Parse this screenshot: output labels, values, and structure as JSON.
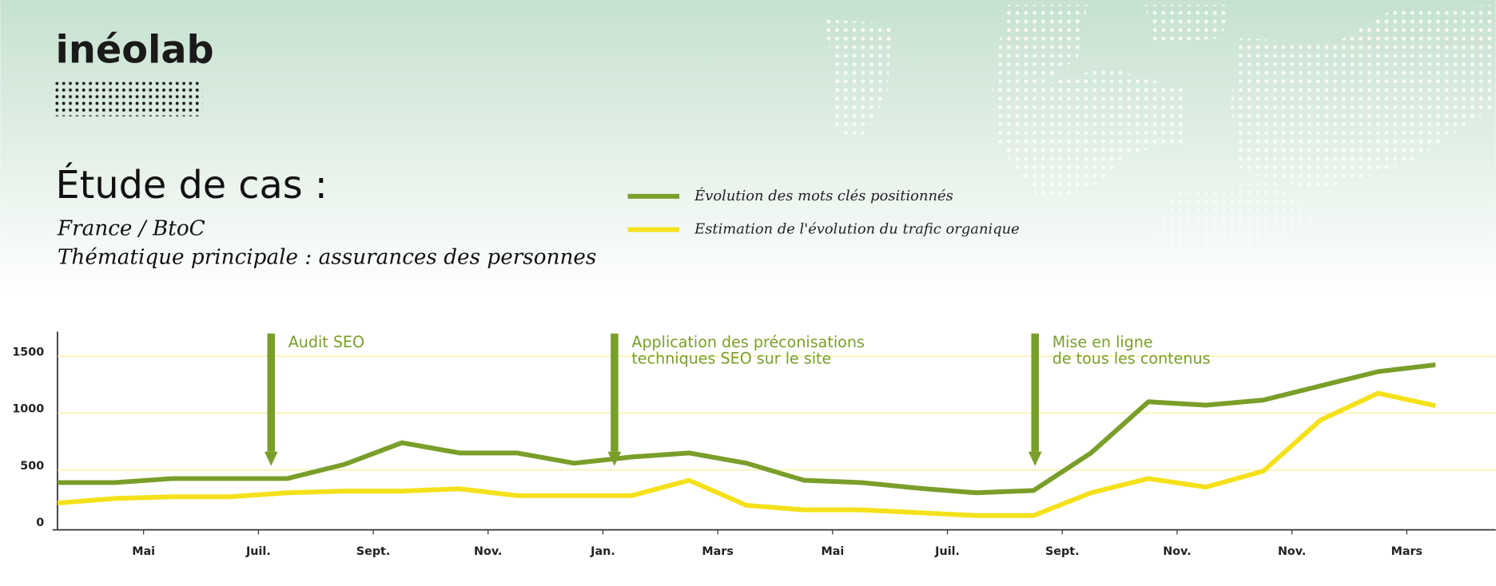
{
  "header": {
    "logo": "inéolab",
    "title": "Étude de cas :",
    "subtitle_lines": [
      "France / BtoC",
      "Thématique principale : assurances des personnes"
    ]
  },
  "chart_data": {
    "type": "line",
    "categories": [
      null,
      "Mai",
      null,
      "Juil.",
      null,
      "Sept.",
      null,
      "Nov.",
      null,
      "Jan.",
      null,
      "Mars",
      null,
      "Mai",
      null,
      "Juil.",
      null,
      "Sept.",
      null,
      "Nov.",
      null,
      "Nov.",
      null,
      "Mars",
      null
    ],
    "series": [
      {
        "name": "Évolution des mots clés positionnés",
        "color": "#7a9e2a",
        "values": [
          390,
          390,
          425,
          425,
          425,
          550,
          740,
          650,
          650,
          560,
          615,
          650,
          560,
          410,
          390,
          340,
          300,
          320,
          650,
          1100,
          1070,
          1115,
          1240,
          1365,
          1425
        ]
      },
      {
        "name": "Estimation de l'évolution du trafic organique",
        "color": "#f5e11a",
        "values": [
          210,
          250,
          265,
          265,
          300,
          315,
          315,
          335,
          275,
          275,
          275,
          410,
          190,
          150,
          150,
          125,
          100,
          100,
          300,
          425,
          350,
          490,
          940,
          1175,
          1065
        ]
      }
    ],
    "ylim": [
      0,
      1700
    ],
    "yticks": [
      0,
      500,
      1000,
      1500
    ],
    "grid": true,
    "annotations": [
      {
        "lines": [
          "Audit SEO"
        ]
      },
      {
        "lines": [
          "Application des préconisations",
          "techniques SEO sur le site"
        ]
      },
      {
        "lines": [
          "Mise en ligne",
          "de tous les contenus"
        ]
      }
    ]
  }
}
